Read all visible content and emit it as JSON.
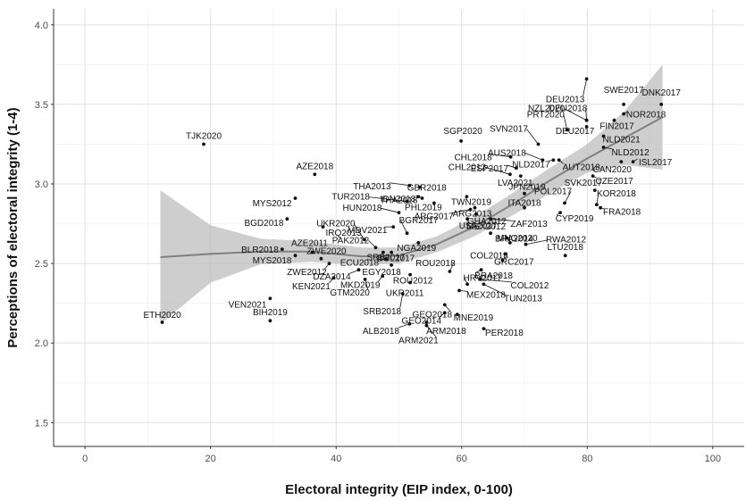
{
  "chart_data": {
    "type": "scatter",
    "xlabel": "Electoral integrity (EIP index, 0-100)",
    "ylabel": "Perceptions of electoral integrity (1-4)",
    "xlim": [
      -5,
      105
    ],
    "ylim": [
      1.35,
      4.1
    ],
    "xticks": [
      0,
      20,
      40,
      60,
      80,
      100
    ],
    "yticks": [
      1.5,
      2.0,
      2.5,
      3.0,
      3.5,
      4.0
    ],
    "xtick_labels": [
      "0",
      "20",
      "40",
      "60",
      "80",
      "100"
    ],
    "ytick_labels": [
      "1.5",
      "2.0",
      "2.5",
      "3.0",
      "3.5",
      "4.0"
    ],
    "grid": true,
    "colors": {
      "points": "#111111",
      "trend": "#808080",
      "ribbon": "#bdbdbd"
    },
    "points": [
      {
        "label": "ETH2020",
        "x": 12.3,
        "y": 2.13
      },
      {
        "label": "TJK2020",
        "x": 18.9,
        "y": 3.25
      },
      {
        "label": "VEN2021",
        "x": 29.5,
        "y": 2.28
      },
      {
        "label": "BIH2019",
        "x": 29.5,
        "y": 2.14
      },
      {
        "label": "MYS2012",
        "x": 33.5,
        "y": 2.91
      },
      {
        "label": "BGD2018",
        "x": 32.2,
        "y": 2.78
      },
      {
        "label": "AZE2018",
        "x": 36.6,
        "y": 3.06
      },
      {
        "label": "BLR2018",
        "x": 31.4,
        "y": 2.59
      },
      {
        "label": "MYS2018",
        "x": 33.5,
        "y": 2.55
      },
      {
        "label": "AZE2011",
        "x": 36.2,
        "y": 2.57
      },
      {
        "label": "ZWE2020",
        "x": 37.6,
        "y": 2.53
      },
      {
        "label": "IRQ2013",
        "x": 37.9,
        "y": 2.73
      },
      {
        "label": "ZWE2012",
        "x": 38.9,
        "y": 2.5
      },
      {
        "label": "UKR2020",
        "x": 44.5,
        "y": 2.65
      },
      {
        "label": "DZA2014",
        "x": 43.6,
        "y": 2.46
      },
      {
        "label": "KEN2021",
        "x": 39.6,
        "y": 2.41
      },
      {
        "label": "GTM2020",
        "x": 44.6,
        "y": 2.4
      },
      {
        "label": "MKD2019",
        "x": 47.4,
        "y": 2.42
      },
      {
        "label": "PAK2012",
        "x": 46.3,
        "y": 2.6
      },
      {
        "label": "ECU2018",
        "x": 48.0,
        "y": 2.53
      },
      {
        "label": "EGY2018",
        "x": 48.8,
        "y": 2.49
      },
      {
        "label": "SRB2017",
        "x": 47.5,
        "y": 2.57
      },
      {
        "label": "BOL2017",
        "x": 48.8,
        "y": 2.57
      },
      {
        "label": "NGA2019",
        "x": 53.1,
        "y": 2.63
      },
      {
        "label": "UKR2011",
        "x": 51.8,
        "y": 2.38
      },
      {
        "label": "SRB2018",
        "x": 50.6,
        "y": 2.31
      },
      {
        "label": "ROU2012",
        "x": 51.8,
        "y": 2.43
      },
      {
        "label": "ROU2018",
        "x": 58.1,
        "y": 2.45
      },
      {
        "label": "TUR2018",
        "x": 51.3,
        "y": 2.89
      },
      {
        "label": "HUN2018",
        "x": 50.0,
        "y": 2.82
      },
      {
        "label": "MDV2021",
        "x": 49.1,
        "y": 2.73
      },
      {
        "label": "BGR2017",
        "x": 51.3,
        "y": 2.69
      },
      {
        "label": "IDN2018",
        "x": 53.7,
        "y": 2.91
      },
      {
        "label": "THA2013",
        "x": 51.7,
        "y": 2.99
      },
      {
        "label": "GBR2018",
        "x": 53.3,
        "y": 2.98
      },
      {
        "label": "THA2018",
        "x": 53.1,
        "y": 2.92
      },
      {
        "label": "PHL2019",
        "x": 55.6,
        "y": 2.88
      },
      {
        "label": "SGP2020",
        "x": 59.9,
        "y": 3.27
      },
      {
        "label": "TWN2019",
        "x": 60.8,
        "y": 2.92
      },
      {
        "label": "ARG2017",
        "x": 61.4,
        "y": 2.84
      },
      {
        "label": "ARG2013",
        "x": 62.1,
        "y": 2.85
      },
      {
        "label": "GHA2012",
        "x": 62.3,
        "y": 2.81
      },
      {
        "label": "USA2017",
        "x": 60.9,
        "y": 2.78
      },
      {
        "label": "ZAF2013",
        "x": 64.6,
        "y": 2.78
      },
      {
        "label": "MEX2012",
        "x": 64.6,
        "y": 2.69
      },
      {
        "label": "BRA2014",
        "x": 67.2,
        "y": 2.66
      },
      {
        "label": "MNG2020",
        "x": 67.7,
        "y": 2.63
      },
      {
        "label": "COL2018",
        "x": 66.5,
        "y": 2.52
      },
      {
        "label": "GRC2017",
        "x": 66.9,
        "y": 2.56
      },
      {
        "label": "BRA2018",
        "x": 63.1,
        "y": 2.46
      },
      {
        "label": "RWA2012",
        "x": 70.2,
        "y": 2.62
      },
      {
        "label": "LTU2018",
        "x": 76.5,
        "y": 2.55
      },
      {
        "label": "HRV2017",
        "x": 60.9,
        "y": 2.37
      },
      {
        "label": "COL2012",
        "x": 63.0,
        "y": 2.4
      },
      {
        "label": "TUN2013",
        "x": 63.5,
        "y": 2.37
      },
      {
        "label": "MEX2018",
        "x": 59.6,
        "y": 2.33
      },
      {
        "label": "GEO2018",
        "x": 57.3,
        "y": 2.24
      },
      {
        "label": "GEO2014",
        "x": 57.3,
        "y": 2.19
      },
      {
        "label": "MNE2019",
        "x": 59.3,
        "y": 2.18
      },
      {
        "label": "ALB2018",
        "x": 51.7,
        "y": 2.12
      },
      {
        "label": "ARM2018",
        "x": 54.4,
        "y": 2.13
      },
      {
        "label": "ARM2021",
        "x": 54.4,
        "y": 2.11
      },
      {
        "label": "PER2018",
        "x": 63.5,
        "y": 2.09
      },
      {
        "label": "CHL2018",
        "x": 67.8,
        "y": 3.17
      },
      {
        "label": "ESP2017",
        "x": 68.7,
        "y": 3.1
      },
      {
        "label": "CHL2012",
        "x": 67.7,
        "y": 3.06
      },
      {
        "label": "LVA2021",
        "x": 69.4,
        "y": 3.05
      },
      {
        "label": "JPN2019",
        "x": 70.0,
        "y": 2.94
      },
      {
        "label": "ITA2018",
        "x": 70.0,
        "y": 2.85
      },
      {
        "label": "POL2017",
        "x": 76.4,
        "y": 2.88
      },
      {
        "label": "CYP2019",
        "x": 75.7,
        "y": 2.82
      },
      {
        "label": "SVK2017",
        "x": 81.2,
        "y": 2.96
      },
      {
        "label": "KOR2018",
        "x": 81.5,
        "y": 2.87
      },
      {
        "label": "FRA2018",
        "x": 82.1,
        "y": 2.85
      },
      {
        "label": "CZE2017",
        "x": 80.9,
        "y": 3.05
      },
      {
        "label": "AUS2018",
        "x": 72.9,
        "y": 3.15
      },
      {
        "label": "SVN2017",
        "x": 72.2,
        "y": 3.25
      },
      {
        "label": "NLD2017",
        "x": 74.6,
        "y": 3.15
      },
      {
        "label": "AUT2018",
        "x": 75.5,
        "y": 3.15
      },
      {
        "label": "NLD2012",
        "x": 82.6,
        "y": 3.23
      },
      {
        "label": "NLD2021",
        "x": 82.6,
        "y": 3.3
      },
      {
        "label": "PRT2020",
        "x": 76.8,
        "y": 3.34
      },
      {
        "label": "DEU2017",
        "x": 79.9,
        "y": 3.36
      },
      {
        "label": "NZL2020",
        "x": 79.9,
        "y": 3.4
      },
      {
        "label": "DEU2018",
        "x": 79.9,
        "y": 3.4
      },
      {
        "label": "FIN2017",
        "x": 84.3,
        "y": 3.4
      },
      {
        "label": "NOR2018",
        "x": 85.8,
        "y": 3.44
      },
      {
        "label": "SWE2017",
        "x": 85.8,
        "y": 3.5
      },
      {
        "label": "DNK2017",
        "x": 91.8,
        "y": 3.5
      },
      {
        "label": "DEU2013",
        "x": 79.9,
        "y": 3.66
      },
      {
        "label": "CAN2020",
        "x": 85.4,
        "y": 3.14
      },
      {
        "label": "ISL2017",
        "x": 87.3,
        "y": 3.14
      }
    ],
    "trend": {
      "type": "loess",
      "x": [
        12,
        20,
        28,
        36,
        44,
        50,
        56,
        62,
        68,
        74,
        80,
        86,
        92
      ],
      "y": [
        2.54,
        2.56,
        2.575,
        2.575,
        2.545,
        2.55,
        2.62,
        2.73,
        2.87,
        3.02,
        3.16,
        3.29,
        3.42
      ],
      "ci_upper": [
        2.96,
        2.74,
        2.655,
        2.64,
        2.6,
        2.6,
        2.67,
        2.79,
        2.94,
        3.1,
        3.25,
        3.46,
        3.75
      ],
      "ci_lower": [
        2.12,
        2.38,
        2.495,
        2.51,
        2.49,
        2.5,
        2.57,
        2.67,
        2.8,
        2.94,
        3.07,
        3.12,
        3.09
      ]
    }
  }
}
